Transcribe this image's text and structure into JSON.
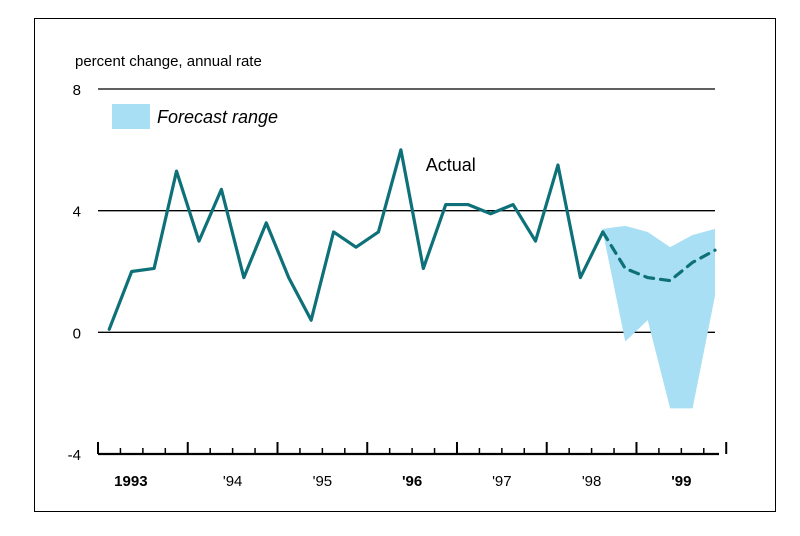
{
  "chart_data": {
    "type": "line",
    "ylabel": "percent change, annual rate",
    "ylim": [
      -4,
      8
    ],
    "yticks": [
      {
        "value": 8,
        "label": "8"
      },
      {
        "value": 4,
        "label": "4"
      },
      {
        "value": 0,
        "label": "0"
      },
      {
        "value": -4,
        "label": "-4"
      }
    ],
    "xlim": [
      1993.0,
      1999.875
    ],
    "xticks": [
      {
        "value": 1993.0,
        "label": "1993",
        "bold": true
      },
      {
        "value": 1994.0,
        "label": "'94",
        "bold": false
      },
      {
        "value": 1995.0,
        "label": "'95",
        "bold": false
      },
      {
        "value": 1996.0,
        "label": "'96",
        "bold": true
      },
      {
        "value": 1997.0,
        "label": "'97",
        "bold": false
      },
      {
        "value": 1998.0,
        "label": "'98",
        "bold": false
      },
      {
        "value": 1999.0,
        "label": "'99",
        "bold": true
      }
    ],
    "series": [
      {
        "name": "Actual",
        "style": "solid",
        "color": "#0e7078",
        "x": [
          1993.125,
          1993.375,
          1993.625,
          1993.875,
          1994.125,
          1994.375,
          1994.625,
          1994.875,
          1995.125,
          1995.375,
          1995.625,
          1995.875,
          1996.125,
          1996.375,
          1996.625,
          1996.875,
          1997.125,
          1997.375,
          1997.625,
          1997.875,
          1998.125,
          1998.375,
          1998.625
        ],
        "y": [
          0.1,
          2.0,
          2.1,
          5.3,
          3.0,
          4.7,
          1.8,
          3.6,
          1.8,
          0.4,
          3.3,
          2.8,
          3.3,
          6.0,
          2.1,
          4.2,
          4.2,
          3.9,
          4.2,
          3.0,
          5.5,
          1.8,
          3.3
        ]
      },
      {
        "name": "Forecast",
        "style": "dashed",
        "color": "#0e7078",
        "x": [
          1998.625,
          1998.875,
          1999.125,
          1999.375,
          1999.625,
          1999.875
        ],
        "y": [
          3.3,
          2.1,
          1.8,
          1.7,
          2.3,
          2.7
        ]
      }
    ],
    "band": {
      "name": "Forecast range",
      "color": "#a9dff5",
      "x": [
        1998.625,
        1998.875,
        1999.125,
        1999.375,
        1999.625,
        1999.875
      ],
      "upper": [
        3.4,
        3.5,
        3.3,
        2.8,
        3.2,
        3.4
      ],
      "lower": [
        3.3,
        -0.3,
        0.4,
        -2.5,
        -2.5,
        1.2
      ]
    },
    "legend": {
      "label": "Forecast range",
      "placement": "top-left"
    },
    "annotations": [
      {
        "text": "Actual",
        "x": 1996.875,
        "y": 5.5
      }
    ]
  }
}
